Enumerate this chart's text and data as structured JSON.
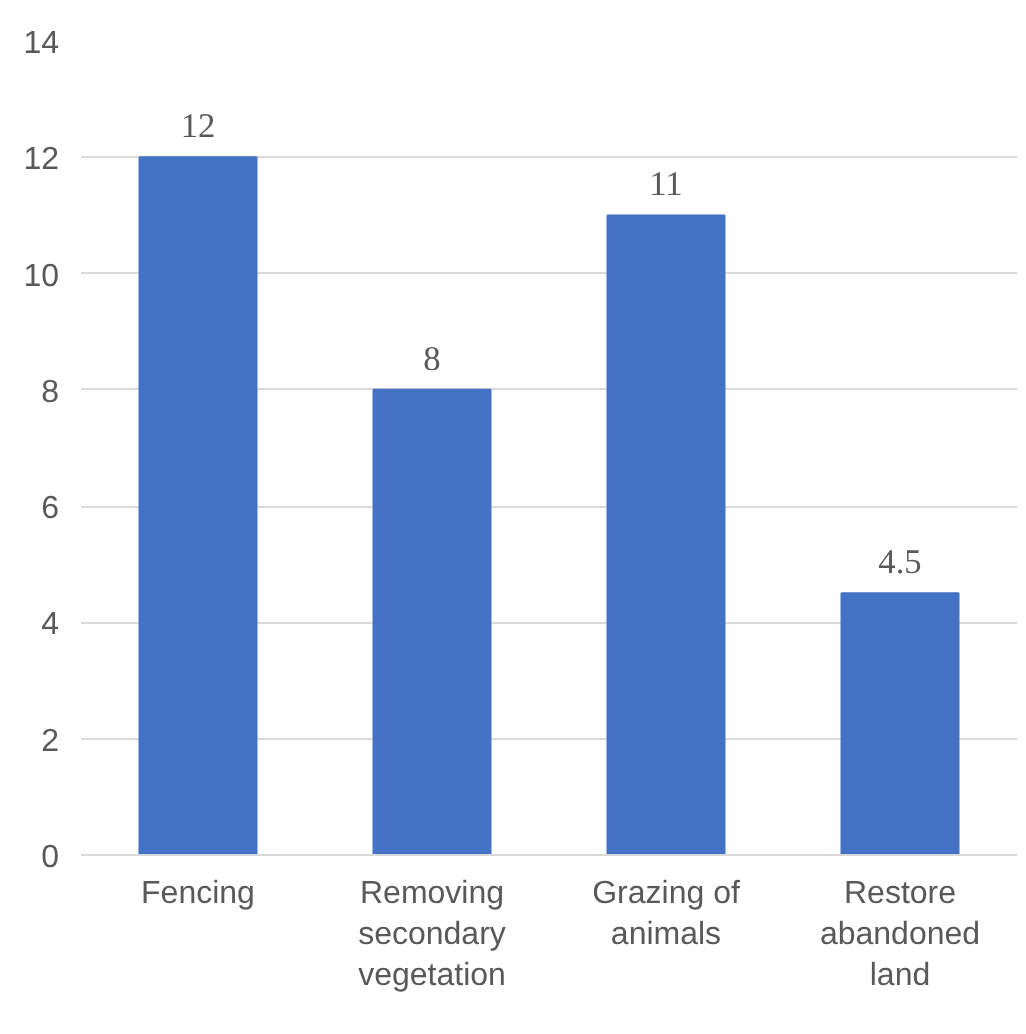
{
  "chart_data": {
    "type": "bar",
    "categories": [
      "Fencing",
      "Removing secondary vegetation",
      "Grazing of animals",
      "Restore abandoned land"
    ],
    "values": [
      12,
      8,
      11,
      4.5
    ],
    "color": "#4472c4",
    "ylim": [
      0,
      14
    ],
    "yticks": [
      0,
      2,
      4,
      6,
      8,
      10,
      12,
      14
    ],
    "grid": "y",
    "data_labels": true
  }
}
